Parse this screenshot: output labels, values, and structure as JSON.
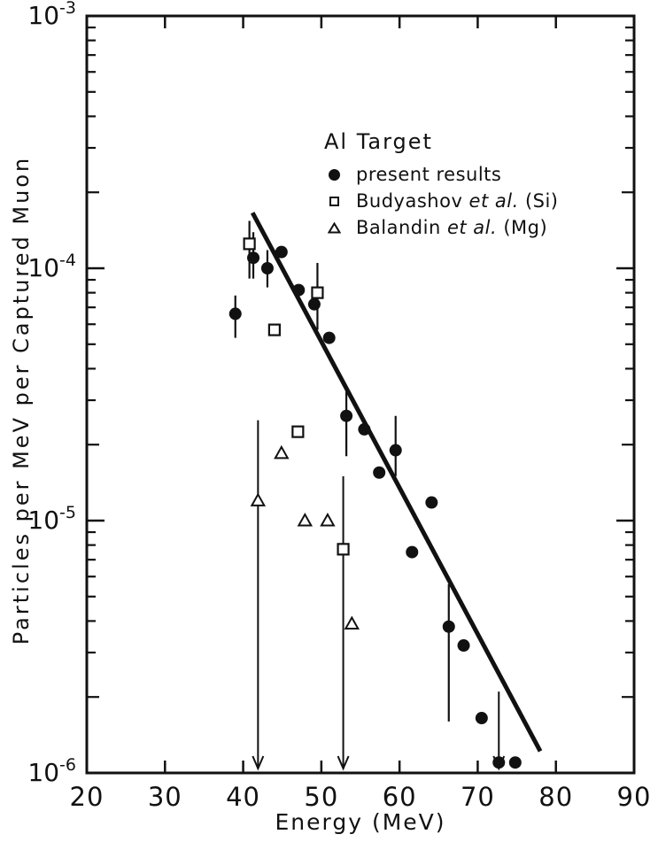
{
  "chart_data": {
    "type": "scatter",
    "title": "Al Target",
    "xlabel": "Energy  (MeV)",
    "ylabel": "Particles per MeV per Captured Muon",
    "xlim": [
      20,
      90
    ],
    "ylim": [
      1e-06,
      0.001
    ],
    "yscale": "log",
    "grid": false,
    "legend_position": "upper-right-inside",
    "xticks": [
      20,
      30,
      40,
      50,
      60,
      70,
      80,
      90
    ],
    "ytick_decades": [
      -3,
      -4,
      -5,
      -6
    ],
    "ytick_base": "10",
    "series": [
      {
        "name": "present results",
        "marker": "filled-circle",
        "label_parts": {
          "pre": "present results",
          "it": "",
          "post": ""
        },
        "points": [
          {
            "x": 39.0,
            "y": 6.6e-05,
            "ylo": 5.3e-05,
            "yhi": 7.8e-05
          },
          {
            "x": 41.3,
            "y": 0.00011,
            "ylo": 9.1e-05,
            "yhi": 0.000139
          },
          {
            "x": 43.1,
            "y": 0.0001,
            "ylo": 8.4e-05,
            "yhi": 0.000118
          },
          {
            "x": 44.9,
            "y": 0.000116
          },
          {
            "x": 47.1,
            "y": 8.2e-05
          },
          {
            "x": 49.1,
            "y": 7.2e-05
          },
          {
            "x": 51.0,
            "y": 5.3e-05
          },
          {
            "x": 53.2,
            "y": 2.6e-05,
            "ylo": 1.8e-05,
            "yhi": 3.3e-05
          },
          {
            "x": 55.5,
            "y": 2.3e-05
          },
          {
            "x": 57.4,
            "y": 1.55e-05
          },
          {
            "x": 59.5,
            "y": 1.9e-05,
            "ylo": 1.5e-05,
            "yhi": 2.6e-05
          },
          {
            "x": 61.6,
            "y": 7.5e-06
          },
          {
            "x": 64.1,
            "y": 1.18e-05
          },
          {
            "x": 66.3,
            "y": 3.8e-06,
            "ylo": 1.6e-06,
            "yhi": 5.6e-06
          },
          {
            "x": 68.2,
            "y": 3.2e-06
          },
          {
            "x": 70.5,
            "y": 1.65e-06
          },
          {
            "x": 72.7,
            "y": 1.1e-06,
            "yhi": 2.1e-06,
            "lower_limit": true
          },
          {
            "x": 74.8,
            "y": 1.1e-06
          }
        ]
      },
      {
        "name": "Budyashov et al. (Si)",
        "marker": "open-square",
        "label_parts": {
          "pre": "Budyashov ",
          "it": "et al.",
          "post": " (Si)"
        },
        "points": [
          {
            "x": 40.8,
            "y": 0.000125,
            "ylo": 9.1e-05,
            "yhi": 0.000154
          },
          {
            "x": 44.0,
            "y": 5.7e-05
          },
          {
            "x": 47.0,
            "y": 2.25e-05
          },
          {
            "x": 49.5,
            "y": 8e-05,
            "ylo": 5.7e-05,
            "yhi": 0.000105
          },
          {
            "x": 52.8,
            "y": 7.7e-06,
            "yhi": 1.5e-05,
            "lower_limit": true
          }
        ]
      },
      {
        "name": "Balandin et al. (Mg)",
        "marker": "open-triangle",
        "label_parts": {
          "pre": "Balandin ",
          "it": "et al.",
          "post": " (Mg)"
        },
        "points": [
          {
            "x": 41.9,
            "y": 1.2e-05,
            "yhi": 2.5e-05,
            "lower_limit": true
          },
          {
            "x": 44.9,
            "y": 1.85e-05
          },
          {
            "x": 47.9,
            "y": 1e-05
          },
          {
            "x": 50.8,
            "y": 1e-05
          },
          {
            "x": 53.9,
            "y": 3.9e-06
          }
        ]
      }
    ],
    "fit_line": {
      "x1": 41.2,
      "y1": 0.000166,
      "x2": 78.0,
      "y2": 1.22e-06
    },
    "limit_arrows": [
      {
        "x": 41.9,
        "y_from": 2.5e-05
      },
      {
        "x": 52.8,
        "y_from": 1.5e-05
      },
      {
        "x": 72.7,
        "y_from": 2.1e-06
      }
    ],
    "style": {
      "ink": "#111111",
      "background": "#ffffff"
    },
    "layout": {
      "box": {
        "l": 98,
        "t": 18,
        "r": 716,
        "b": 873
      }
    }
  }
}
